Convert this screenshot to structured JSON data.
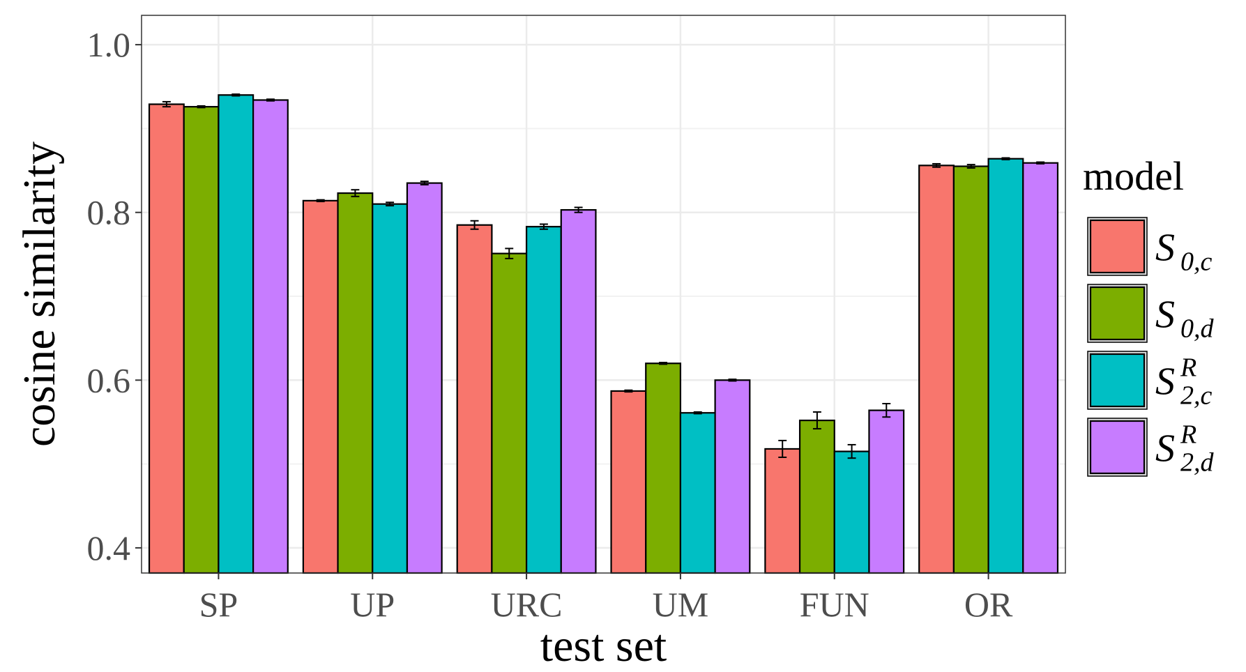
{
  "chart_data": {
    "type": "bar",
    "xlabel": "test set",
    "ylabel": "cosine similarity",
    "ylim": [
      0.37,
      1.035
    ],
    "yticks": [
      "0.4",
      "0.6",
      "0.8",
      "1.0"
    ],
    "ytick_values": [
      0.4,
      0.6,
      0.8,
      1.0
    ],
    "grid": true,
    "legend_position": "right",
    "legend_title": "model",
    "categories": [
      "SP",
      "UP",
      "URC",
      "UM",
      "FUN",
      "OR"
    ],
    "series": [
      {
        "name": "S0,c",
        "label_main": "S",
        "label_sup": "",
        "label_sub": "0,c",
        "color": "#F8766D",
        "values": [
          0.929,
          0.814,
          0.785,
          0.587,
          0.518,
          0.856
        ],
        "errors": [
          0.003,
          0.001,
          0.005,
          0.001,
          0.01,
          0.002
        ]
      },
      {
        "name": "S0,d",
        "label_main": "S",
        "label_sup": "",
        "label_sub": "0,d",
        "color": "#7CAE00",
        "values": [
          0.926,
          0.823,
          0.751,
          0.62,
          0.552,
          0.855
        ],
        "errors": [
          0.001,
          0.004,
          0.006,
          0.001,
          0.01,
          0.002
        ]
      },
      {
        "name": "S2,c R",
        "label_main": "S",
        "label_sup": "R",
        "label_sub": "2,c",
        "color": "#00BFC4",
        "values": [
          0.94,
          0.81,
          0.783,
          0.561,
          0.515,
          0.864
        ],
        "errors": [
          0.001,
          0.002,
          0.003,
          0.001,
          0.008,
          0.001
        ]
      },
      {
        "name": "S2,d R",
        "label_main": "S",
        "label_sup": "R",
        "label_sub": "2,d",
        "color": "#C77CFF",
        "values": [
          0.934,
          0.835,
          0.803,
          0.6,
          0.564,
          0.859
        ],
        "errors": [
          0.001,
          0.002,
          0.003,
          0.001,
          0.008,
          0.001
        ]
      }
    ]
  }
}
